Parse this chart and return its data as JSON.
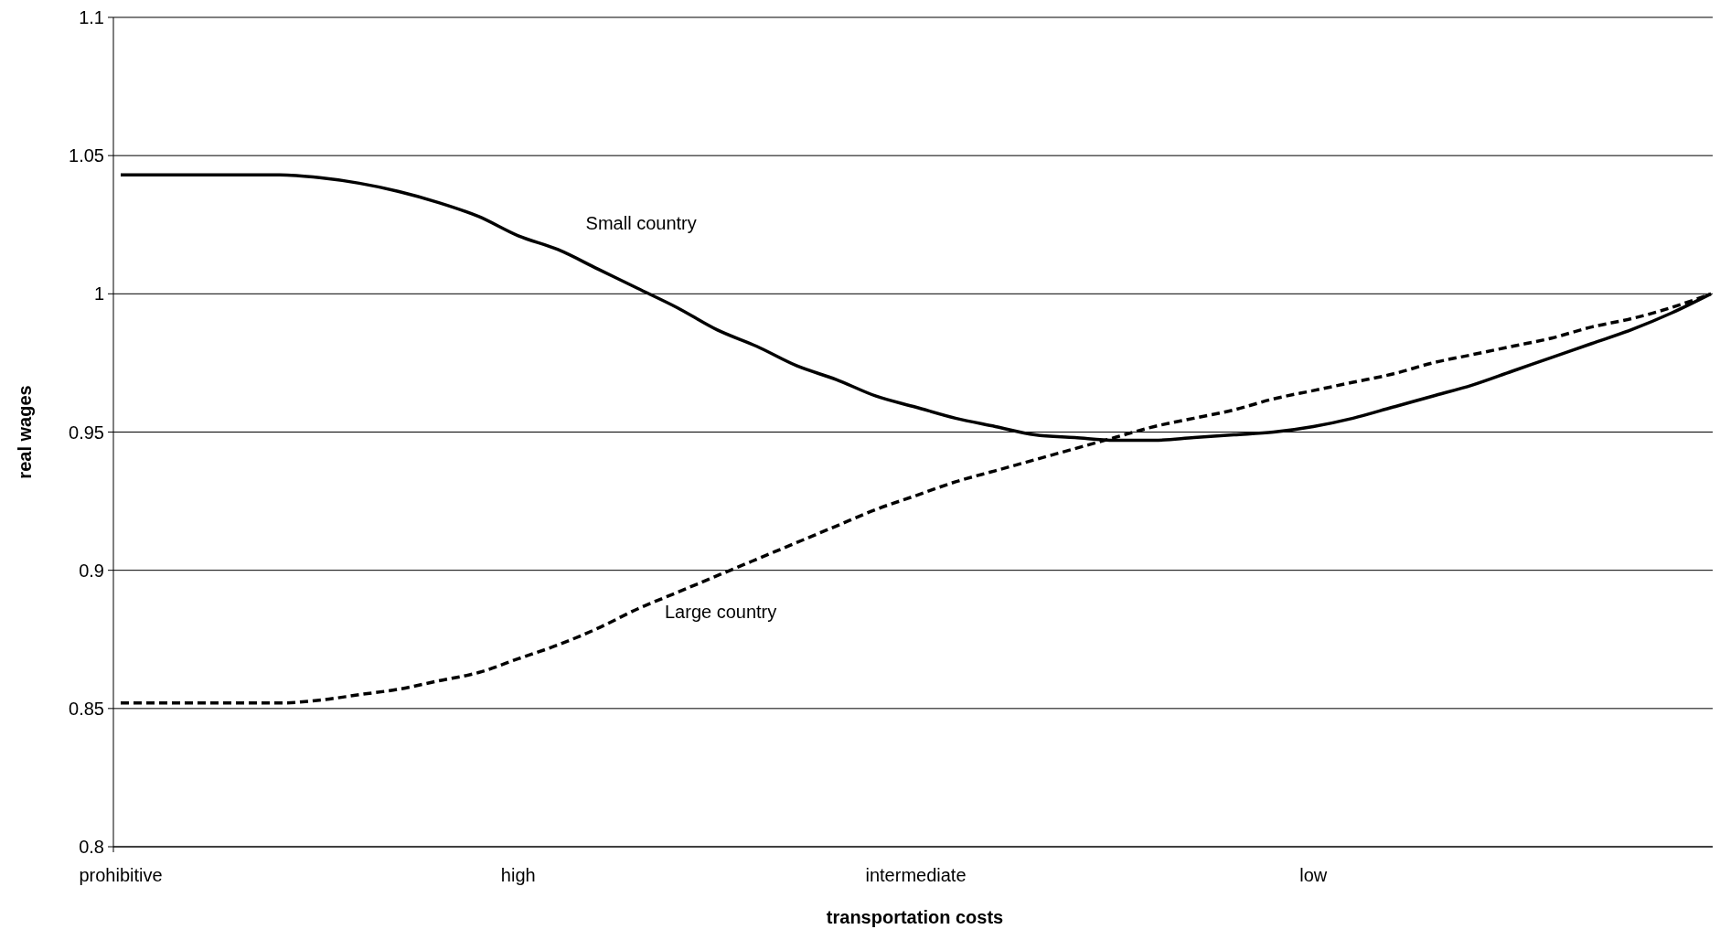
{
  "chart_data": {
    "type": "line",
    "xlabel": "transportation costs",
    "ylabel": "real wages",
    "categories": [
      "prohibitive",
      null,
      null,
      null,
      null,
      null,
      null,
      null,
      null,
      null,
      "high",
      null,
      null,
      null,
      null,
      null,
      null,
      null,
      null,
      null,
      "intermediate",
      null,
      null,
      null,
      null,
      null,
      null,
      null,
      null,
      null,
      "low",
      null,
      null,
      null,
      null,
      null,
      null,
      null,
      null,
      null,
      null
    ],
    "ylim": [
      0.8,
      1.1
    ],
    "yticks": [
      0.8,
      0.85,
      0.9,
      0.95,
      1,
      1.05,
      1.1
    ],
    "grid": "y",
    "series": [
      {
        "color": "#000000",
        "line_style": "solid",
        "values": [
          1.043,
          1.043,
          1.043,
          1.043,
          1.043,
          1.042,
          1.04,
          1.037,
          1.033,
          1.028,
          1.021,
          1.016,
          1.009,
          1.002,
          0.995,
          0.987,
          0.981,
          0.974,
          0.969,
          0.963,
          0.959,
          0.955,
          0.952,
          0.949,
          0.948,
          0.947,
          0.947,
          0.948,
          0.949,
          0.95,
          0.952,
          0.955,
          0.959,
          0.963,
          0.967,
          0.972,
          0.977,
          0.982,
          0.987,
          0.993,
          1.0
        ]
      },
      {
        "color": "#000000",
        "line_style": "dashed",
        "values": [
          0.852,
          0.852,
          0.852,
          0.852,
          0.852,
          0.853,
          0.855,
          0.857,
          0.86,
          0.863,
          0.868,
          0.873,
          0.879,
          0.886,
          0.892,
          0.898,
          0.904,
          0.91,
          0.916,
          0.922,
          0.927,
          0.932,
          0.936,
          0.94,
          0.944,
          0.948,
          0.952,
          0.955,
          0.958,
          0.962,
          0.965,
          0.968,
          0.971,
          0.975,
          0.978,
          0.981,
          0.984,
          0.988,
          0.991,
          0.995,
          1.0
        ]
      }
    ],
    "annotations": [
      "Small country",
      "Large country"
    ]
  }
}
